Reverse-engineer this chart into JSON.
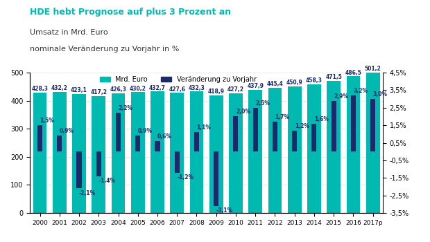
{
  "years": [
    "2000",
    "2001",
    "2002",
    "2003",
    "2004",
    "2005",
    "2006",
    "2007",
    "2008",
    "2009",
    "2010",
    "2011",
    "2012",
    "2013",
    "2014",
    "2015",
    "2016",
    "2017p"
  ],
  "umsatz": [
    428.3,
    432.2,
    423.1,
    417.2,
    426.3,
    430.2,
    432.7,
    427.6,
    432.3,
    418.9,
    427.2,
    437.9,
    445.4,
    450.9,
    458.3,
    471.5,
    486.5,
    501.2
  ],
  "veraenderung": [
    1.5,
    0.9,
    -2.1,
    -1.4,
    2.2,
    0.9,
    0.6,
    -1.2,
    1.1,
    -3.1,
    2.0,
    2.5,
    1.7,
    1.2,
    1.6,
    2.9,
    3.2,
    3.0
  ],
  "bar_color_teal": "#00B9B0",
  "bar_color_navy": "#1B2A6B",
  "title_line1": "HDE hebt Prognose auf plus 3 Prozent an",
  "title_line2": "Umsatz in Mrd. Euro",
  "title_line3": "nominale Veränderung zu Vorjahr in %",
  "legend_label1": "Mrd. Euro",
  "legend_label2": "Veränderung zu Vorjahr",
  "ylim_left": [
    0,
    500
  ],
  "ylim_right": [
    -3.5,
    4.5
  ],
  "left_ticks": [
    0,
    100,
    200,
    300,
    400,
    500
  ],
  "right_ticks": [
    -3.5,
    -2.5,
    -1.5,
    -0.5,
    0.5,
    1.5,
    2.5,
    3.5,
    4.5
  ],
  "right_tick_labels": [
    "-3,5%",
    "-2,5%",
    "-1,5%",
    "-0,5%",
    "0,5%",
    "1,5%",
    "2,5%",
    "3,5%",
    "4,5%"
  ],
  "background_color": "#ffffff",
  "title_color": "#00B9B0",
  "teal_bar_width": 0.7,
  "navy_bar_width": 0.25,
  "fig_width": 6.2,
  "fig_height": 3.5,
  "dpi": 100,
  "umsatz_label_color": "#1B2A6B",
  "veraenderung_label_color": "#1B2A6B",
  "subtitle_color": "#333333"
}
